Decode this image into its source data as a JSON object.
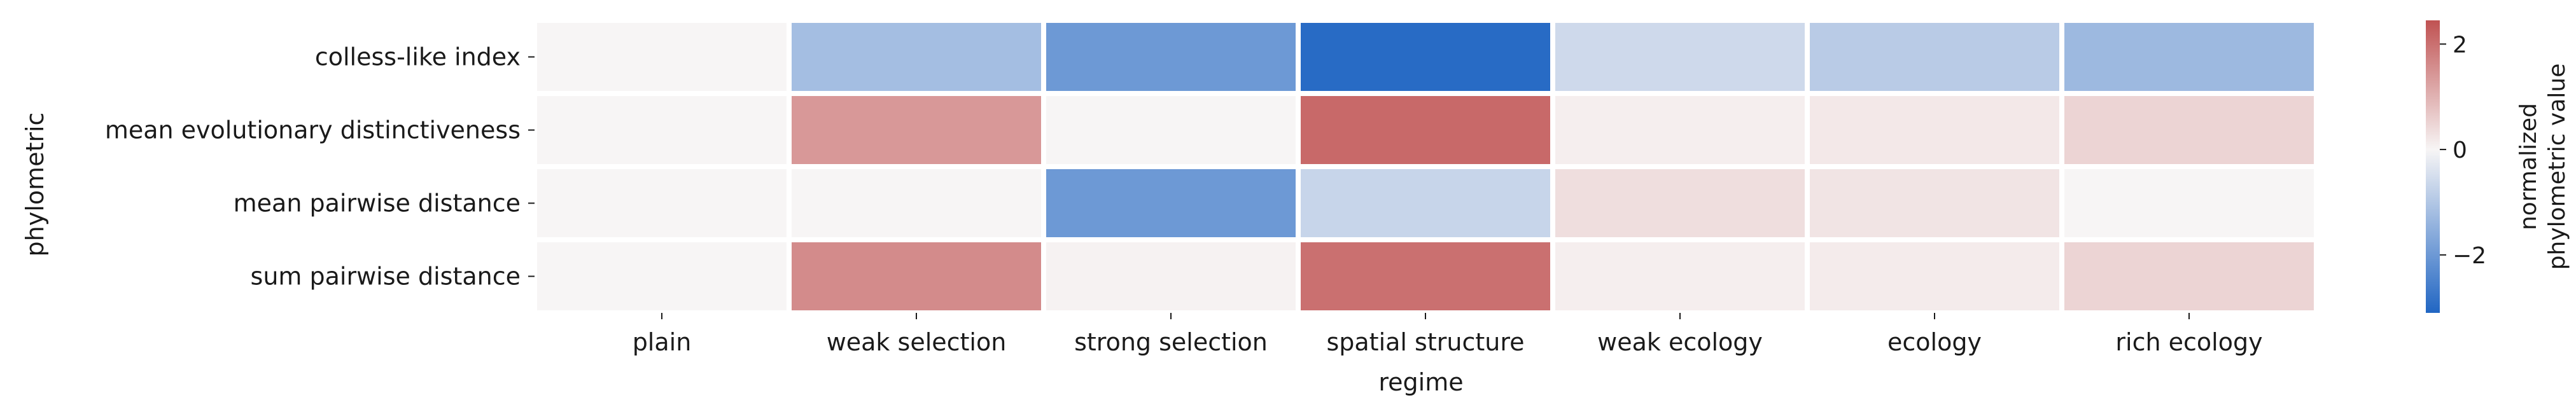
{
  "chart_data": {
    "type": "heatmap",
    "title": "",
    "xlabel": "regime",
    "ylabel": "phylometric",
    "x": [
      "plain",
      "weak selection",
      "strong selection",
      "spatial structure",
      "weak ecology",
      "ecology",
      "rich ecology"
    ],
    "y": [
      "colless-like index",
      "mean evolutionary distinctiveness",
      "mean pairwise distance",
      "sum pairwise distance"
    ],
    "values": [
      [
        0.0,
        -1.2,
        -2.0,
        -3.0,
        -0.6,
        -0.9,
        -1.3
      ],
      [
        0.0,
        1.4,
        0.0,
        2.1,
        0.1,
        0.2,
        0.5
      ],
      [
        0.0,
        0.0,
        -2.0,
        -0.7,
        0.35,
        0.25,
        0.0
      ],
      [
        0.0,
        1.6,
        0.05,
        2.0,
        0.1,
        0.15,
        0.5
      ]
    ],
    "colorbar": {
      "label_lines": [
        "normalized",
        "phylometric value"
      ],
      "ticks": [
        {
          "value": 2,
          "label": "2"
        },
        {
          "value": 0,
          "label": "0"
        },
        {
          "value": -2,
          "label": "−2"
        }
      ],
      "vmin": -3.1,
      "vmax": 2.45,
      "colormap": [
        "#2166c3",
        "#f7f5f5",
        "#c05252"
      ]
    }
  }
}
